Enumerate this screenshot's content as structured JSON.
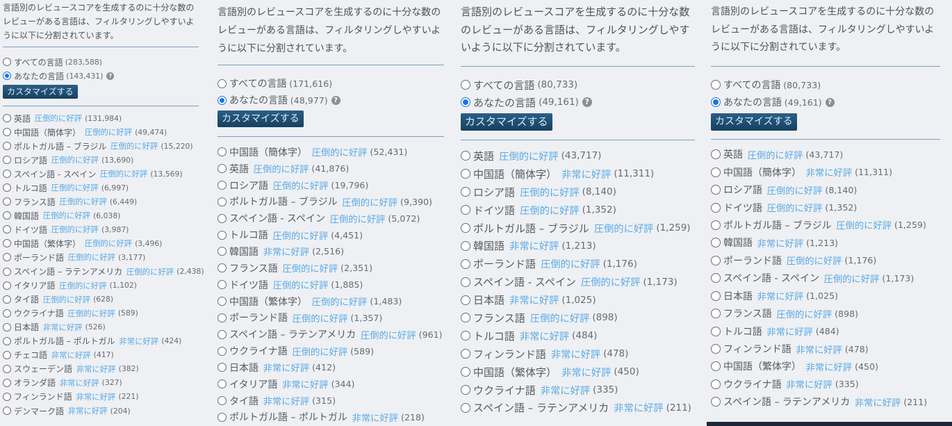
{
  "panels": [
    {
      "description": "言語別のレビュースコアを生成するのに十分な数のレビューがある言語は、フィルタリングしやすいように以下に分割されています。",
      "all_languages": {
        "label": "すべての言語",
        "count": "(283,588)"
      },
      "your_languages": {
        "label": "あなたの言語",
        "count": "(143,431)",
        "help": "?"
      },
      "customize": "カスタマイズする",
      "languages": [
        {
          "name": "英語",
          "rating": "圧倒的に好評",
          "count": "(131,984)"
        },
        {
          "name": "中国語（簡体字）",
          "rating": "圧倒的に好評",
          "count": "(49,474)"
        },
        {
          "name": "ポルトガル語 – ブラジル",
          "rating": "圧倒的に好評",
          "count": "(15,220)"
        },
        {
          "name": "ロシア語",
          "rating": "圧倒的に好評",
          "count": "(13,690)"
        },
        {
          "name": "スペイン語 - スペイン",
          "rating": "圧倒的に好評",
          "count": "(13,569)"
        },
        {
          "name": "トルコ語",
          "rating": "圧倒的に好評",
          "count": "(6,997)"
        },
        {
          "name": "フランス語",
          "rating": "圧倒的に好評",
          "count": "(6,449)"
        },
        {
          "name": "韓国語",
          "rating": "圧倒的に好評",
          "count": "(6,038)"
        },
        {
          "name": "ドイツ語",
          "rating": "圧倒的に好評",
          "count": "(3,987)"
        },
        {
          "name": "中国語（繁体字）",
          "rating": "圧倒的に好評",
          "count": "(3,496)"
        },
        {
          "name": "ポーランド語",
          "rating": "圧倒的に好評",
          "count": "(3,177)"
        },
        {
          "name": "スペイン語 – ラテンアメリカ",
          "rating": "圧倒的に好評",
          "count": "(2,438)"
        },
        {
          "name": "イタリア語",
          "rating": "圧倒的に好評",
          "count": "(1,102)"
        },
        {
          "name": "タイ語",
          "rating": "圧倒的に好評",
          "count": "(628)"
        },
        {
          "name": "ウクライナ語",
          "rating": "圧倒的に好評",
          "count": "(589)"
        },
        {
          "name": "日本語",
          "rating": "非常に好評",
          "count": "(526)"
        },
        {
          "name": "ポルトガル語 – ポルトガル",
          "rating": "非常に好評",
          "count": "(424)"
        },
        {
          "name": "チェコ語",
          "rating": "非常に好評",
          "count": "(417)"
        },
        {
          "name": "スウェーデン語",
          "rating": "非常に好評",
          "count": "(382)"
        },
        {
          "name": "オランダ語",
          "rating": "非常に好評",
          "count": "(327)"
        },
        {
          "name": "フィンランド語",
          "rating": "非常に好評",
          "count": "(221)"
        },
        {
          "name": "デンマーク語",
          "rating": "非常に好評",
          "count": "(204)"
        }
      ]
    },
    {
      "description": "言語別のレビュースコアを生成するのに十分な数のレビューがある言語は、フィルタリングしやすいように以下に分割されています。",
      "all_languages": {
        "label": "すべての言語",
        "count": "(171,616)"
      },
      "your_languages": {
        "label": "あなたの言語",
        "count": "(48,977)",
        "help": "?"
      },
      "customize": "カスタマイズする",
      "languages": [
        {
          "name": "中国語（簡体字）",
          "rating": "圧倒的に好評",
          "count": "(52,431)"
        },
        {
          "name": "英語",
          "rating": "圧倒的に好評",
          "count": "(41,876)"
        },
        {
          "name": "ロシア語",
          "rating": "圧倒的に好評",
          "count": "(19,796)"
        },
        {
          "name": "ポルトガル語 – ブラジル",
          "rating": "圧倒的に好評",
          "count": "(9,390)"
        },
        {
          "name": "スペイン語 - スペイン",
          "rating": "圧倒的に好評",
          "count": "(5,072)"
        },
        {
          "name": "トルコ語",
          "rating": "圧倒的に好評",
          "count": "(4,451)"
        },
        {
          "name": "韓国語",
          "rating": "非常に好評",
          "count": "(2,516)"
        },
        {
          "name": "フランス語",
          "rating": "圧倒的に好評",
          "count": "(2,351)"
        },
        {
          "name": "ドイツ語",
          "rating": "圧倒的に好評",
          "count": "(1,885)"
        },
        {
          "name": "中国語（繁体字）",
          "rating": "圧倒的に好評",
          "count": "(1,483)"
        },
        {
          "name": "ポーランド語",
          "rating": "圧倒的に好評",
          "count": "(1,357)"
        },
        {
          "name": "スペイン語 – ラテンアメリカ",
          "rating": "圧倒的に好評",
          "count": "(961)"
        },
        {
          "name": "ウクライナ語",
          "rating": "圧倒的に好評",
          "count": "(589)"
        },
        {
          "name": "日本語",
          "rating": "非常に好評",
          "count": "(412)"
        },
        {
          "name": "イタリア語",
          "rating": "非常に好評",
          "count": "(344)"
        },
        {
          "name": "タイ語",
          "rating": "非常に好評",
          "count": "(315)"
        },
        {
          "name": "ポルトガル語 – ポルトガル",
          "rating": "非常に好評",
          "count": "(218)"
        }
      ]
    },
    {
      "description": "言語別のレビュースコアを生成するのに十分な数のレビューがある言語は、フィルタリングしやすいように以下に分割されています。",
      "all_languages": {
        "label": "すべての言語",
        "count": "(80,733)"
      },
      "your_languages": {
        "label": "あなたの言語",
        "count": "(49,161)",
        "help": "?"
      },
      "customize": "カスタマイズする",
      "languages": [
        {
          "name": "英語",
          "rating": "圧倒的に好評",
          "count": "(43,717)"
        },
        {
          "name": "中国語（簡体字）",
          "rating": "非常に好評",
          "count": "(11,311)"
        },
        {
          "name": "ロシア語",
          "rating": "圧倒的に好評",
          "count": "(8,140)"
        },
        {
          "name": "ドイツ語",
          "rating": "圧倒的に好評",
          "count": "(1,352)"
        },
        {
          "name": "ポルトガル語 – ブラジル",
          "rating": "圧倒的に好評",
          "count": "(1,259)"
        },
        {
          "name": "韓国語",
          "rating": "非常に好評",
          "count": "(1,213)"
        },
        {
          "name": "ポーランド語",
          "rating": "圧倒的に好評",
          "count": "(1,176)"
        },
        {
          "name": "スペイン語 - スペイン",
          "rating": "圧倒的に好評",
          "count": "(1,173)"
        },
        {
          "name": "日本語",
          "rating": "非常に好評",
          "count": "(1,025)"
        },
        {
          "name": "フランス語",
          "rating": "圧倒的に好評",
          "count": "(898)"
        },
        {
          "name": "トルコ語",
          "rating": "非常に好評",
          "count": "(484)"
        },
        {
          "name": "フィンランド語",
          "rating": "非常に好評",
          "count": "(478)"
        },
        {
          "name": "中国語（繁体字）",
          "rating": "非常に好評",
          "count": "(450)"
        },
        {
          "name": "ウクライナ語",
          "rating": "非常に好評",
          "count": "(335)"
        },
        {
          "name": "スペイン語 – ラテンアメリカ",
          "rating": "非常に好評",
          "count": "(211)"
        }
      ]
    },
    {
      "description": "言語別のレビュースコアを生成するのに十分な数のレビューがある言語は、フィルタリングしやすいように以下に分割されています。",
      "all_languages": {
        "label": "すべての言語",
        "count": "(80,733)"
      },
      "your_languages": {
        "label": "あなたの言語",
        "count": "(49,161)",
        "help": "?"
      },
      "customize": "カスタマイズする",
      "languages": [
        {
          "name": "英語",
          "rating": "圧倒的に好評",
          "count": "(43,717)"
        },
        {
          "name": "中国語（簡体字）",
          "rating": "非常に好評",
          "count": "(11,311)"
        },
        {
          "name": "ロシア語",
          "rating": "圧倒的に好評",
          "count": "(8,140)"
        },
        {
          "name": "ドイツ語",
          "rating": "圧倒的に好評",
          "count": "(1,352)"
        },
        {
          "name": "ポルトガル語 – ブラジル",
          "rating": "圧倒的に好評",
          "count": "(1,259)"
        },
        {
          "name": "韓国語",
          "rating": "非常に好評",
          "count": "(1,213)"
        },
        {
          "name": "ポーランド語",
          "rating": "圧倒的に好評",
          "count": "(1,176)"
        },
        {
          "name": "スペイン語 - スペイン",
          "rating": "圧倒的に好評",
          "count": "(1,173)"
        },
        {
          "name": "日本語",
          "rating": "非常に好評",
          "count": "(1,025)"
        },
        {
          "name": "フランス語",
          "rating": "圧倒的に好評",
          "count": "(898)"
        },
        {
          "name": "トルコ語",
          "rating": "非常に好評",
          "count": "(484)"
        },
        {
          "name": "フィンランド語",
          "rating": "非常に好評",
          "count": "(478)"
        },
        {
          "name": "中国語（繁体字）",
          "rating": "非常に好評",
          "count": "(450)"
        },
        {
          "name": "ウクライナ語",
          "rating": "非常に好評",
          "count": "(335)"
        },
        {
          "name": "スペイン語 – ラテンアメリカ",
          "rating": "非常に好評",
          "count": "(211)"
        }
      ]
    }
  ]
}
